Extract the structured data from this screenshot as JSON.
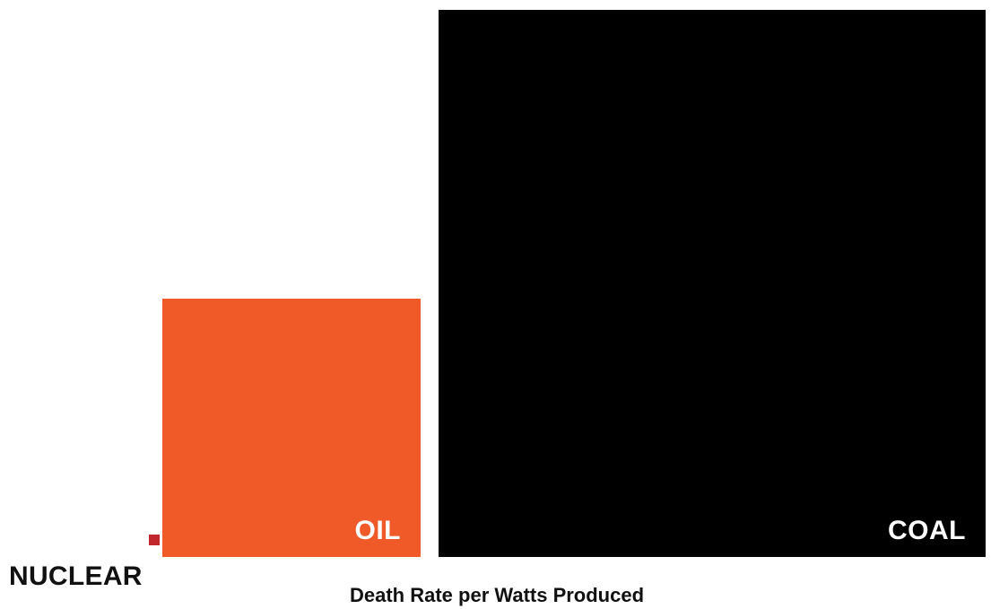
{
  "chart_data": {
    "type": "area",
    "title": "",
    "xlabel": "Death Rate per Watts Produced",
    "ylabel": "",
    "categories": [
      "NUCLEAR",
      "OIL",
      "COAL"
    ],
    "values": [
      0.04,
      36,
      161
    ],
    "colors": [
      "#c1272d",
      "#f05a28",
      "#000000"
    ],
    "encoding": "square area proportional to value"
  }
}
